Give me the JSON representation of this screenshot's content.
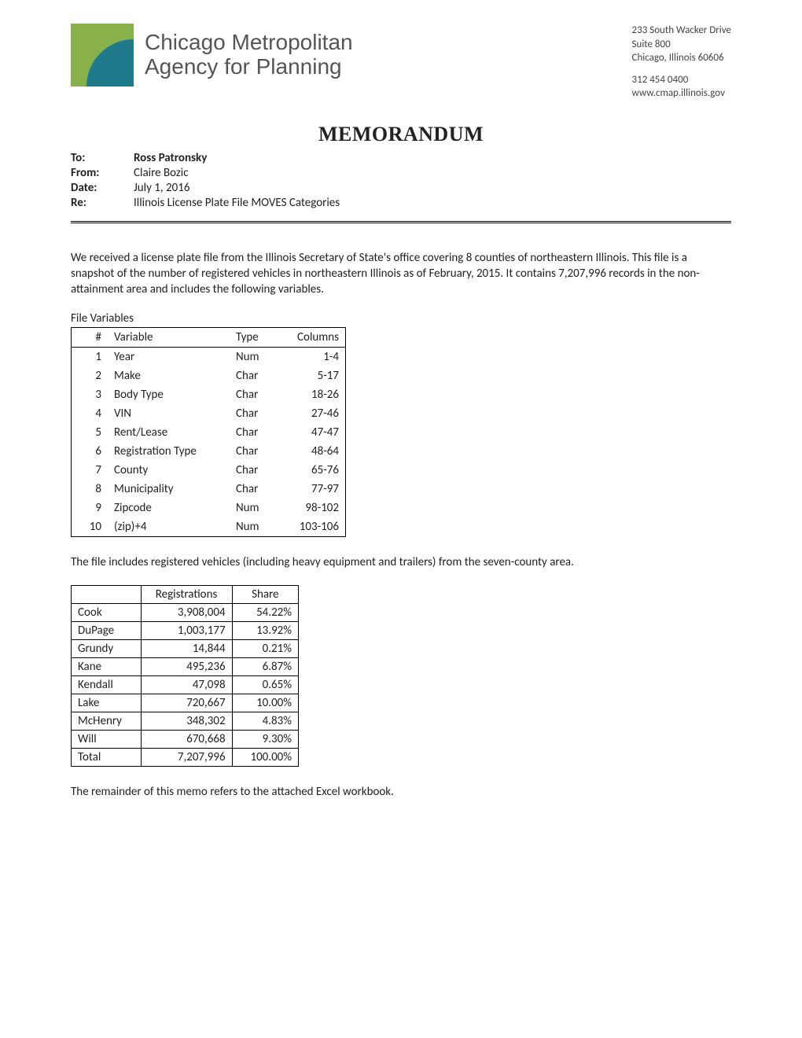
{
  "org": {
    "name_line1": "Chicago Metropolitan",
    "name_line2": "Agency for Planning",
    "logo_colors": {
      "square": "#88b04b",
      "leaf": "#1f7a8c"
    }
  },
  "address": {
    "line1": "233 South Wacker Drive",
    "line2": "Suite 800",
    "line3": "Chicago, Illinois 60606",
    "phone": "312 454 0400",
    "url": "www.cmap.illinois.gov"
  },
  "title": "MEMORANDUM",
  "meta": {
    "to_label": "To:",
    "to_value": "Ross Patronsky",
    "from_label": "From:",
    "from_value": "Claire Bozic",
    "date_label": "Date:",
    "date_value": "July 1, 2016",
    "re_label": "Re:",
    "re_value": "Illinois License Plate File MOVES Categories"
  },
  "para1": "We received a license plate file from the Illinois Secretary of State's office covering 8 counties of northeastern Illinois.  This file is a snapshot of the number of registered vehicles in northeastern Illinois as of February, 2015.  It contains 7,207,996 records in the non-attainment area and includes the following variables.",
  "vars_caption": "File Variables",
  "vars_headers": {
    "num": "#",
    "variable": "Variable",
    "type": "Type",
    "columns": "Columns"
  },
  "vars_rows": [
    {
      "n": "1",
      "v": "Year",
      "t": "Num",
      "c": "1-4"
    },
    {
      "n": "2",
      "v": "Make",
      "t": "Char",
      "c": "5-17"
    },
    {
      "n": "3",
      "v": "Body Type",
      "t": "Char",
      "c": "18-26"
    },
    {
      "n": "4",
      "v": "VIN",
      "t": "Char",
      "c": "27-46"
    },
    {
      "n": "5",
      "v": "Rent/Lease",
      "t": "Char",
      "c": "47-47"
    },
    {
      "n": "6",
      "v": "Registration Type",
      "t": "Char",
      "c": "48-64"
    },
    {
      "n": "7",
      "v": "County",
      "t": "Char",
      "c": "65-76"
    },
    {
      "n": "8",
      "v": "Municipality",
      "t": "Char",
      "c": "77-97"
    },
    {
      "n": "9",
      "v": "Zipcode",
      "t": "Num",
      "c": "98-102"
    },
    {
      "n": "10",
      "v": "(zip)+4",
      "t": "Num",
      "c": "103-106"
    }
  ],
  "para2": "The file includes registered vehicles (including heavy equipment and trailers) from the seven-county area.",
  "reg_headers": {
    "county": "",
    "registrations": "Registrations",
    "share": "Share"
  },
  "reg_rows": [
    {
      "county": "Cook",
      "reg": "3,908,004",
      "share": "54.22%"
    },
    {
      "county": "DuPage",
      "reg": "1,003,177",
      "share": "13.92%"
    },
    {
      "county": "Grundy",
      "reg": "14,844",
      "share": "0.21%"
    },
    {
      "county": "Kane",
      "reg": "495,236",
      "share": "6.87%"
    },
    {
      "county": "Kendall",
      "reg": "47,098",
      "share": "0.65%"
    },
    {
      "county": "Lake",
      "reg": "720,667",
      "share": "10.00%"
    },
    {
      "county": "McHenry",
      "reg": "348,302",
      "share": "4.83%"
    },
    {
      "county": "Will",
      "reg": "670,668",
      "share": "9.30%"
    },
    {
      "county": "Total",
      "reg": "7,207,996",
      "share": "100.00%"
    }
  ],
  "para3": "The remainder of this memo refers to the attached Excel workbook."
}
